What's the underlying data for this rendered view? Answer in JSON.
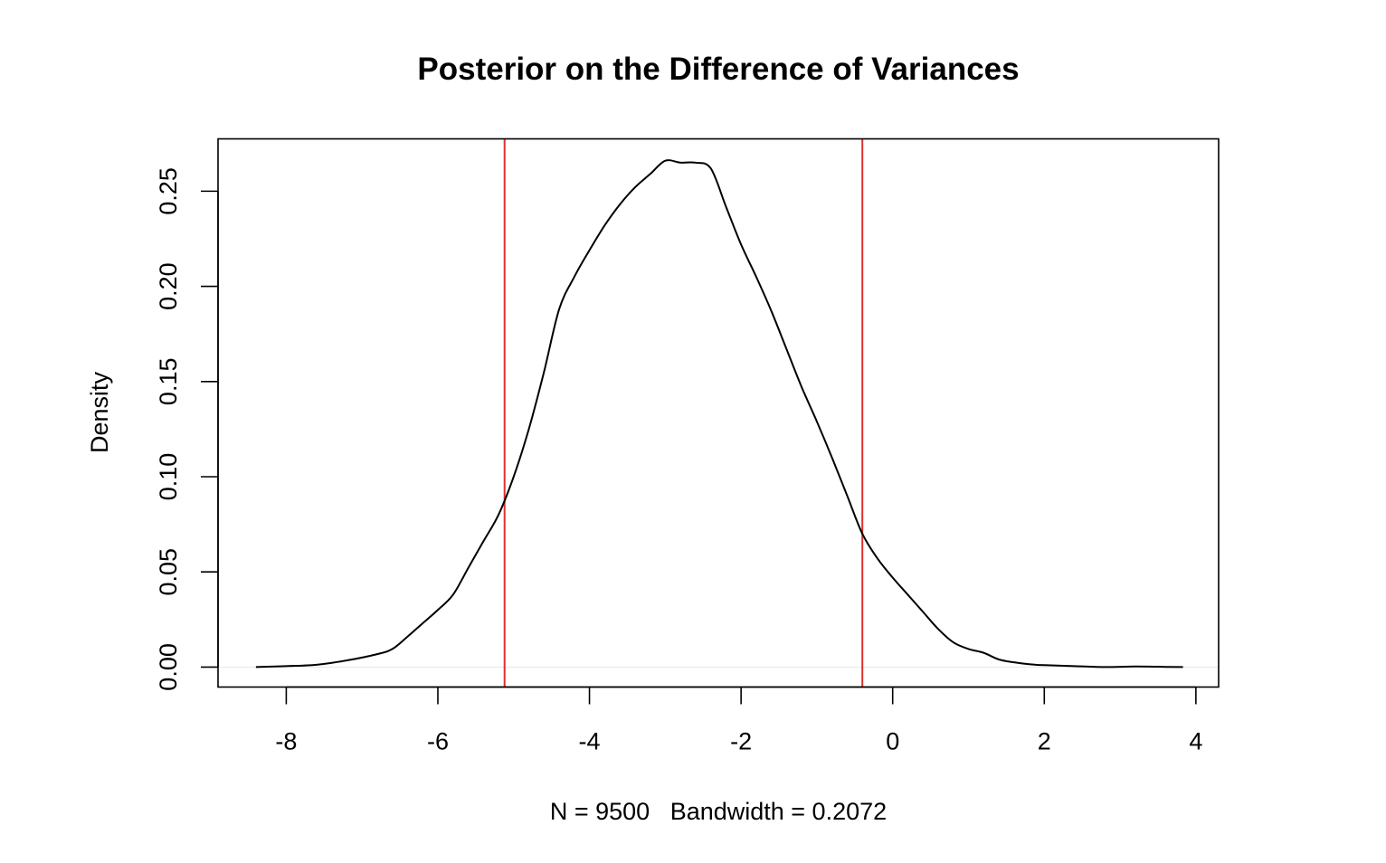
{
  "chart_data": {
    "type": "line",
    "title": "Posterior on the Difference of Variances",
    "xlabel": "N = 9500   Bandwidth = 0.2072",
    "ylabel": "Density",
    "xlim": [
      -8.9,
      4.3
    ],
    "ylim": [
      -0.0105,
      0.2775
    ],
    "x_ticks": [
      -8,
      -6,
      -4,
      -2,
      0,
      2,
      4
    ],
    "x_tick_labels": [
      "-8",
      "-6",
      "-4",
      "-2",
      "0",
      "2",
      "4"
    ],
    "y_ticks": [
      0.0,
      0.05,
      0.1,
      0.15,
      0.2,
      0.25
    ],
    "y_tick_labels": [
      "0.00",
      "0.05",
      "0.10",
      "0.15",
      "0.20",
      "0.25"
    ],
    "grid": false,
    "baseline": 0,
    "series": [
      {
        "color": "#000000",
        "x": [
          -8.4,
          -8.0,
          -7.6,
          -7.2,
          -6.8,
          -6.6,
          -6.4,
          -6.2,
          -6.0,
          -5.8,
          -5.6,
          -5.4,
          -5.2,
          -5.0,
          -4.8,
          -4.6,
          -4.4,
          -4.2,
          -4.0,
          -3.8,
          -3.6,
          -3.4,
          -3.2,
          -3.0,
          -2.8,
          -2.6,
          -2.4,
          -2.2,
          -2.0,
          -1.8,
          -1.6,
          -1.4,
          -1.2,
          -1.0,
          -0.8,
          -0.6,
          -0.4,
          -0.2,
          0.0,
          0.2,
          0.4,
          0.6,
          0.8,
          1.0,
          1.2,
          1.4,
          1.6,
          1.8,
          2.0,
          2.4,
          2.8,
          3.2,
          3.6,
          3.83
        ],
        "y": [
          0.0,
          0.0005,
          0.0012,
          0.0035,
          0.0068,
          0.0095,
          0.016,
          0.023,
          0.03,
          0.038,
          0.052,
          0.066,
          0.08,
          0.1,
          0.125,
          0.155,
          0.188,
          0.205,
          0.219,
          0.232,
          0.243,
          0.252,
          0.259,
          0.266,
          0.265,
          0.265,
          0.262,
          0.242,
          0.222,
          0.205,
          0.187,
          0.167,
          0.147,
          0.129,
          0.11,
          0.09,
          0.07,
          0.057,
          0.047,
          0.038,
          0.029,
          0.02,
          0.013,
          0.0095,
          0.0075,
          0.004,
          0.0025,
          0.0015,
          0.001,
          0.0005,
          0.0,
          0.0003,
          0.0001,
          0.0
        ]
      }
    ],
    "vertical_lines": [
      {
        "x": -5.12,
        "color": "#e0302d"
      },
      {
        "x": -0.4,
        "color": "#e0302d"
      }
    ]
  }
}
